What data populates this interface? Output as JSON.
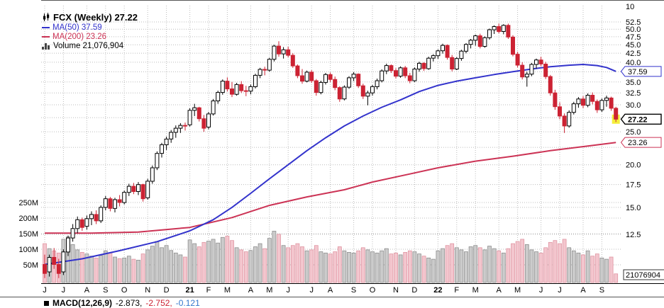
{
  "legend": {
    "symbol_line": "FCX (Weekly) 27.22",
    "ma50": "MA(50) 37.59",
    "ma200": "MA(200) 23.26",
    "volume": "Volume 21,076,904"
  },
  "macd": {
    "label": "MACD(12,26,9)",
    "v1": "-2.873,",
    "v2": "-2.752,",
    "v3": "-0.121"
  },
  "colors": {
    "up_candle": "#ffffff",
    "up_stroke": "#000000",
    "down_candle": "#cc2233",
    "ma50": "#3333cc",
    "ma200": "#cc3355",
    "vol_up_fill": "#cbcbcb",
    "vol_up_stroke": "#8a8a8a",
    "vol_down_fill": "#f3c6ce",
    "vol_down_stroke": "#de919e",
    "grid": "#bcbcbc",
    "highlight": "#f4ee3c",
    "macd_v2": "#cc2233",
    "macd_v3": "#3377cc"
  },
  "chart_data": {
    "type": "candlestick",
    "symbol": "FCX",
    "timeframe": "Weekly",
    "last_price": 27.22,
    "ma50_value": 37.59,
    "ma200_value": 23.26,
    "volume_value": "21,076,904",
    "scale": "log",
    "ylim": [
      9,
      58
    ],
    "top_axis_label": "10",
    "volume_tag": "21076904",
    "price_ticks": [
      {
        "v": 52.5,
        "label": "52.5"
      },
      {
        "v": 50,
        "label": "50.0"
      },
      {
        "v": 47.5,
        "label": "47.5"
      },
      {
        "v": 45,
        "label": "45.0"
      },
      {
        "v": 42.5,
        "label": "42.5"
      },
      {
        "v": 40,
        "label": "40.0"
      },
      {
        "v": 37.5,
        "label": ""
      },
      {
        "v": 35,
        "label": "35.0"
      },
      {
        "v": 32.5,
        "label": "32.5"
      },
      {
        "v": 30,
        "label": "30.0"
      },
      {
        "v": 27.5,
        "label": ""
      },
      {
        "v": 25,
        "label": "25.0"
      },
      {
        "v": 22.5,
        "label": ""
      },
      {
        "v": 20,
        "label": "20.0"
      },
      {
        "v": 17.5,
        "label": "17.5"
      },
      {
        "v": 15,
        "label": "15.0"
      },
      {
        "v": 12.5,
        "label": "12.5"
      }
    ],
    "volume_ticks": [
      {
        "v": 250,
        "label": "250M"
      },
      {
        "v": 200,
        "label": "200M"
      },
      {
        "v": 150,
        "label": "150M"
      },
      {
        "v": 100,
        "label": "100M"
      },
      {
        "v": 50,
        "label": "50M"
      }
    ],
    "price_tags": [
      {
        "value": 37.59,
        "text": "37.59",
        "style": "ma50"
      },
      {
        "value": 27.22,
        "text": "27.22",
        "style": "last"
      },
      {
        "value": 23.26,
        "text": "23.26",
        "style": "ma200"
      }
    ],
    "months": [
      {
        "label": "J",
        "weeks": 4
      },
      {
        "label": "J",
        "weeks": 5
      },
      {
        "label": "A",
        "weeks": 4
      },
      {
        "label": "S",
        "weeks": 4
      },
      {
        "label": "O",
        "weeks": 5
      },
      {
        "label": "N",
        "weeks": 4
      },
      {
        "label": "D",
        "weeks": 5
      },
      {
        "label": "21",
        "weeks": 4,
        "bold": true
      },
      {
        "label": "F",
        "weeks": 4
      },
      {
        "label": "M",
        "weeks": 5
      },
      {
        "label": "A",
        "weeks": 4
      },
      {
        "label": "M",
        "weeks": 4
      },
      {
        "label": "J",
        "weeks": 5
      },
      {
        "label": "J",
        "weeks": 4
      },
      {
        "label": "A",
        "weeks": 5
      },
      {
        "label": "S",
        "weeks": 4
      },
      {
        "label": "O",
        "weeks": 5
      },
      {
        "label": "N",
        "weeks": 4
      },
      {
        "label": "D",
        "weeks": 5
      },
      {
        "label": "22",
        "weeks": 4,
        "bold": true
      },
      {
        "label": "F",
        "weeks": 4
      },
      {
        "label": "M",
        "weeks": 5
      },
      {
        "label": "A",
        "weeks": 4
      },
      {
        "label": "M",
        "weeks": 5
      },
      {
        "label": "J",
        "weeks": 4
      },
      {
        "label": "J",
        "weeks": 5
      },
      {
        "label": "A",
        "weeks": 4
      },
      {
        "label": "S",
        "weeks": 4
      }
    ],
    "candles": [
      [
        10.2,
        10.9,
        9.3,
        9.6
      ],
      [
        9.7,
        10.9,
        9.4,
        10.7
      ],
      [
        10.7,
        11.4,
        9.9,
        10.2
      ],
      [
        10.2,
        10.6,
        9.3,
        9.6
      ],
      [
        9.7,
        11.3,
        9.5,
        11.1
      ],
      [
        11.1,
        12.4,
        10.8,
        12.2
      ],
      [
        12.2,
        13.4,
        11.9,
        13.0
      ],
      [
        13.0,
        14.1,
        12.6,
        13.8
      ],
      [
        13.8,
        14.0,
        12.8,
        13.1
      ],
      [
        13.2,
        14.2,
        12.9,
        13.9
      ],
      [
        13.9,
        14.6,
        13.3,
        14.3
      ],
      [
        14.3,
        14.7,
        13.4,
        13.7
      ],
      [
        13.7,
        15.2,
        13.5,
        15.0
      ],
      [
        15.0,
        16.2,
        14.7,
        15.9
      ],
      [
        15.9,
        16.1,
        14.6,
        14.9
      ],
      [
        14.9,
        16.0,
        14.5,
        15.8
      ],
      [
        15.8,
        16.3,
        15.1,
        15.5
      ],
      [
        15.5,
        16.8,
        15.3,
        16.6
      ],
      [
        16.6,
        17.6,
        16.2,
        17.3
      ],
      [
        17.3,
        17.7,
        16.4,
        16.7
      ],
      [
        16.7,
        17.8,
        16.3,
        17.5
      ],
      [
        17.5,
        17.6,
        15.6,
        15.9
      ],
      [
        16.0,
        18.2,
        15.8,
        17.9
      ],
      [
        17.9,
        19.9,
        17.6,
        19.6
      ],
      [
        19.6,
        21.9,
        19.3,
        21.6
      ],
      [
        21.6,
        23.2,
        21.0,
        22.9
      ],
      [
        22.9,
        24.2,
        22.1,
        23.8
      ],
      [
        23.8,
        25.3,
        23.2,
        24.9
      ],
      [
        24.9,
        26.1,
        24.0,
        25.6
      ],
      [
        25.6,
        26.5,
        24.8,
        26.1
      ],
      [
        26.1,
        26.6,
        25.2,
        26.0
      ],
      [
        26.2,
        29.3,
        25.9,
        28.9
      ],
      [
        28.9,
        30.2,
        27.8,
        29.4
      ],
      [
        29.4,
        29.6,
        26.8,
        27.3
      ],
      [
        27.3,
        28.0,
        25.0,
        25.6
      ],
      [
        25.8,
        28.6,
        25.4,
        28.2
      ],
      [
        28.2,
        31.2,
        27.9,
        30.8
      ],
      [
        30.8,
        33.0,
        30.2,
        32.6
      ],
      [
        32.6,
        35.6,
        32.1,
        35.2
      ],
      [
        35.2,
        36.1,
        32.8,
        33.4
      ],
      [
        33.4,
        35.0,
        31.6,
        32.2
      ],
      [
        32.2,
        34.8,
        31.9,
        34.4
      ],
      [
        34.4,
        35.2,
        32.5,
        33.0
      ],
      [
        33.0,
        34.1,
        31.8,
        32.9
      ],
      [
        32.9,
        34.4,
        32.2,
        33.9
      ],
      [
        33.9,
        37.0,
        33.5,
        36.6
      ],
      [
        36.6,
        38.5,
        35.9,
        38.1
      ],
      [
        38.1,
        38.8,
        36.6,
        37.9
      ],
      [
        37.9,
        41.2,
        37.5,
        40.8
      ],
      [
        40.8,
        45.0,
        40.2,
        44.6
      ],
      [
        44.6,
        46.1,
        41.5,
        42.3
      ],
      [
        42.3,
        44.3,
        41.0,
        43.5
      ],
      [
        43.5,
        44.4,
        41.3,
        41.9
      ],
      [
        41.9,
        42.5,
        38.5,
        39.0
      ],
      [
        39.0,
        39.4,
        35.9,
        36.5
      ],
      [
        36.5,
        38.2,
        34.6,
        35.2
      ],
      [
        35.2,
        37.8,
        34.9,
        37.4
      ],
      [
        37.4,
        37.9,
        34.8,
        35.3
      ],
      [
        35.3,
        35.7,
        31.9,
        32.6
      ],
      [
        32.6,
        35.3,
        32.2,
        34.9
      ],
      [
        34.9,
        37.2,
        34.4,
        36.8
      ],
      [
        36.8,
        37.3,
        35.0,
        35.6
      ],
      [
        35.6,
        36.3,
        33.1,
        33.7
      ],
      [
        33.7,
        34.0,
        30.6,
        31.2
      ],
      [
        31.2,
        34.2,
        30.9,
        33.8
      ],
      [
        33.8,
        36.4,
        33.4,
        36.0
      ],
      [
        36.0,
        37.4,
        35.2,
        36.9
      ],
      [
        36.9,
        37.1,
        33.6,
        34.1
      ],
      [
        34.1,
        34.6,
        31.2,
        31.8
      ],
      [
        31.8,
        33.0,
        29.9,
        32.5
      ],
      [
        32.5,
        34.3,
        31.9,
        33.9
      ],
      [
        33.9,
        35.8,
        33.3,
        35.3
      ],
      [
        35.3,
        38.1,
        34.9,
        37.7
      ],
      [
        37.7,
        39.6,
        36.9,
        39.1
      ],
      [
        39.1,
        39.4,
        37.2,
        37.8
      ],
      [
        37.8,
        38.4,
        35.8,
        36.4
      ],
      [
        36.4,
        38.9,
        36.0,
        38.5
      ],
      [
        38.5,
        39.0,
        35.9,
        36.5
      ],
      [
        36.5,
        37.2,
        34.7,
        35.3
      ],
      [
        35.3,
        38.6,
        35.0,
        38.2
      ],
      [
        38.2,
        40.1,
        37.5,
        39.7
      ],
      [
        39.7,
        40.0,
        37.7,
        38.3
      ],
      [
        38.3,
        41.5,
        38.0,
        41.1
      ],
      [
        41.1,
        42.2,
        40.2,
        41.8
      ],
      [
        41.8,
        43.6,
        40.9,
        43.2
      ],
      [
        43.2,
        45.3,
        42.4,
        44.8
      ],
      [
        44.8,
        45.1,
        40.7,
        41.3
      ],
      [
        41.3,
        42.0,
        37.6,
        38.2
      ],
      [
        38.2,
        41.4,
        37.9,
        41.0
      ],
      [
        41.0,
        43.5,
        40.4,
        43.1
      ],
      [
        43.1,
        45.5,
        42.5,
        45.1
      ],
      [
        45.1,
        46.8,
        43.9,
        46.4
      ],
      [
        46.4,
        48.2,
        44.7,
        47.8
      ],
      [
        47.8,
        48.5,
        43.9,
        44.5
      ],
      [
        44.5,
        47.6,
        44.1,
        47.2
      ],
      [
        47.2,
        50.2,
        46.6,
        49.8
      ],
      [
        49.8,
        51.3,
        48.4,
        50.9
      ],
      [
        50.9,
        51.9,
        48.6,
        49.2
      ],
      [
        49.2,
        51.7,
        48.3,
        51.3
      ],
      [
        51.3,
        51.9,
        46.8,
        47.4
      ],
      [
        47.4,
        48.0,
        41.6,
        42.2
      ],
      [
        42.2,
        42.9,
        38.6,
        39.2
      ],
      [
        39.2,
        40.0,
        35.6,
        36.2
      ],
      [
        36.2,
        37.5,
        33.9,
        36.9
      ],
      [
        36.9,
        39.8,
        36.4,
        39.4
      ],
      [
        39.4,
        41.0,
        38.3,
        40.6
      ],
      [
        40.6,
        41.5,
        38.9,
        39.5
      ],
      [
        39.5,
        40.1,
        35.7,
        36.3
      ],
      [
        36.3,
        36.7,
        31.9,
        32.5
      ],
      [
        32.5,
        33.2,
        29.0,
        29.6
      ],
      [
        29.6,
        30.5,
        27.2,
        27.8
      ],
      [
        27.8,
        28.3,
        24.8,
        26.0
      ],
      [
        26.0,
        28.9,
        25.7,
        28.5
      ],
      [
        28.5,
        30.6,
        28.1,
        30.2
      ],
      [
        30.2,
        31.6,
        29.4,
        31.2
      ],
      [
        31.2,
        31.8,
        29.3,
        29.9
      ],
      [
        29.9,
        32.4,
        29.5,
        32.0
      ],
      [
        32.0,
        32.6,
        30.1,
        30.7
      ],
      [
        30.7,
        31.1,
        28.4,
        29.0
      ],
      [
        29.0,
        31.3,
        28.6,
        30.9
      ],
      [
        30.9,
        31.9,
        29.6,
        31.4
      ],
      [
        31.4,
        31.7,
        28.8,
        29.3
      ],
      [
        29.3,
        29.6,
        26.7,
        27.22
      ]
    ],
    "volumes_millions": [
      118,
      102,
      95,
      88,
      132,
      140,
      115,
      98,
      90,
      85,
      78,
      72,
      80,
      95,
      88,
      75,
      70,
      72,
      78,
      68,
      65,
      85,
      98,
      110,
      125,
      105,
      112,
      96,
      88,
      82,
      75,
      130,
      118,
      108,
      122,
      126,
      132,
      120,
      138,
      142,
      128,
      105,
      98,
      92,
      96,
      108,
      118,
      102,
      135,
      158,
      148,
      112,
      105,
      112,
      118,
      108,
      95,
      98,
      112,
      92,
      88,
      85,
      92,
      108,
      95,
      90,
      88,
      95,
      105,
      98,
      92,
      88,
      95,
      102,
      85,
      88,
      82,
      90,
      95,
      92,
      85,
      78,
      72,
      68,
      95,
      102,
      112,
      118,
      105,
      98,
      92,
      108,
      112,
      105,
      98,
      110,
      102,
      95,
      88,
      102,
      118,
      125,
      132,
      115,
      98,
      92,
      88,
      105,
      122,
      128,
      118,
      132,
      105,
      95,
      88,
      82,
      95,
      78,
      85,
      72,
      68,
      75,
      21
    ],
    "ma50_points": [
      [
        0,
        10.2
      ],
      [
        8,
        10.6
      ],
      [
        16,
        11.2
      ],
      [
        24,
        11.9
      ],
      [
        31,
        12.8
      ],
      [
        36,
        13.8
      ],
      [
        40,
        15.0
      ],
      [
        44,
        16.5
      ],
      [
        48,
        18.2
      ],
      [
        52,
        20.0
      ],
      [
        56,
        22.0
      ],
      [
        60,
        24.0
      ],
      [
        64,
        26.0
      ],
      [
        68,
        27.8
      ],
      [
        72,
        29.5
      ],
      [
        76,
        31.0
      ],
      [
        80,
        32.8
      ],
      [
        84,
        34.2
      ],
      [
        88,
        35.2
      ],
      [
        92,
        36.0
      ],
      [
        96,
        36.8
      ],
      [
        100,
        37.5
      ],
      [
        104,
        38.2
      ],
      [
        108,
        38.8
      ],
      [
        112,
        39.2
      ],
      [
        115,
        39.4
      ],
      [
        118,
        39.1
      ],
      [
        120,
        38.6
      ],
      [
        122,
        37.59
      ]
    ],
    "ma200_points": [
      [
        0,
        12.6
      ],
      [
        10,
        12.6
      ],
      [
        20,
        12.7
      ],
      [
        31,
        13.1
      ],
      [
        40,
        14.0
      ],
      [
        48,
        15.2
      ],
      [
        56,
        16.1
      ],
      [
        64,
        16.9
      ],
      [
        70,
        17.8
      ],
      [
        78,
        18.8
      ],
      [
        84,
        19.6
      ],
      [
        92,
        20.5
      ],
      [
        100,
        21.2
      ],
      [
        108,
        22.0
      ],
      [
        116,
        22.7
      ],
      [
        122,
        23.26
      ]
    ]
  }
}
